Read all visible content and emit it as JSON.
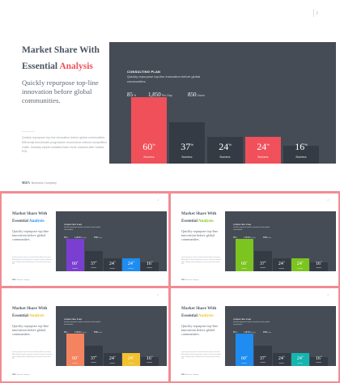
{
  "page_number": "2",
  "title_line1": "Market Share With",
  "title_line2_prefix": "Essential ",
  "title_highlight": "Analysis",
  "subtitle": "Quickly repurpose top-line innovation before global communities.",
  "body_text": "Quickly repurpose top-line innovation before global communities. Efficiently benchmark progressive ecommerce without competitive crafts. Globally exploit installed base niche markets after holistic ROI.",
  "logo": "MIZA",
  "logo_sub": "Business Company",
  "plan": {
    "title": "CONSULTING PLAN",
    "desc": "Quickly repurpose top-line innovation before global communities."
  },
  "stats": [
    {
      "value": "85",
      "unit": "%"
    },
    {
      "value": "1,850",
      "unit": "Per Day"
    },
    {
      "value": "850",
      "unit": "Users"
    }
  ],
  "chart_data": {
    "type": "bar",
    "categories": [
      "Business",
      "Business",
      "Business",
      "Business",
      "Business"
    ],
    "values": [
      60,
      37,
      24,
      24,
      16
    ],
    "value_suffix": "%",
    "highlighted_index": [
      0,
      3
    ],
    "ylim": [
      0,
      60
    ]
  },
  "colors": {
    "panel": "#454c56",
    "bar_default": "#353b44",
    "big_accent": "#f0505a",
    "variants": [
      {
        "accent": "#7a3fd0",
        "accent2": "#1e8cf0",
        "title_accent": "#1e8cf0"
      },
      {
        "accent": "#7cc420",
        "accent2": "#7cc420",
        "title_accent": "#7cc420"
      },
      {
        "accent": "#f4845f",
        "accent2": "#f2c12e",
        "title_accent": "#f2c12e"
      },
      {
        "accent": "#1e8cf0",
        "accent2": "#16b6b0",
        "title_accent": "#f2c12e"
      }
    ]
  }
}
